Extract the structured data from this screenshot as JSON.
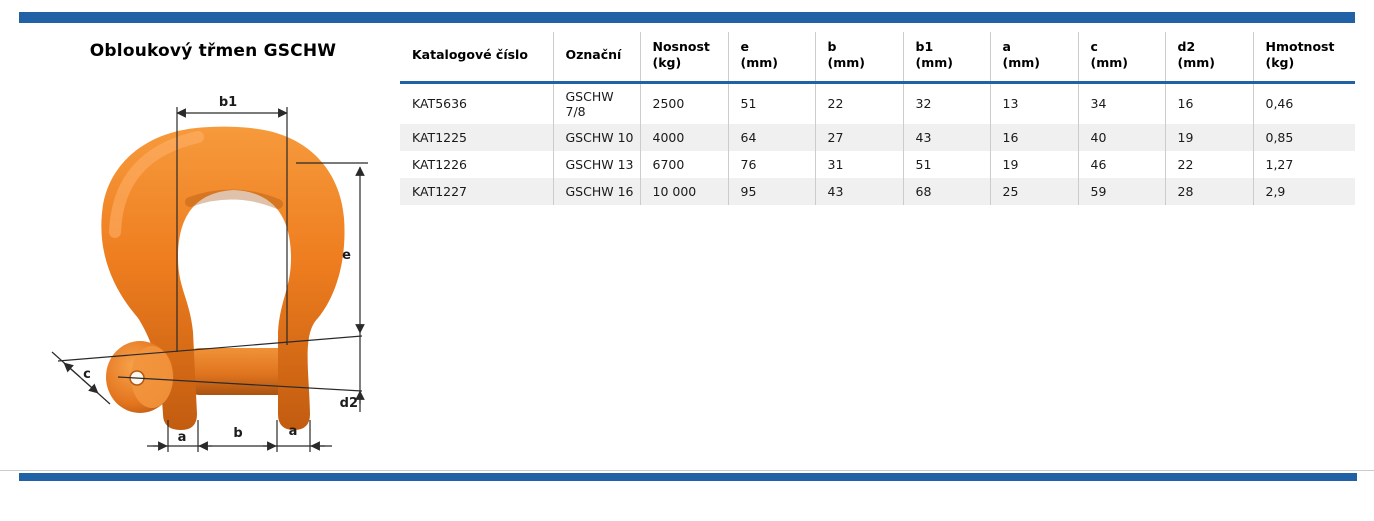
{
  "accent": "#2161a5",
  "title": "Obloukový třmen GSCHW",
  "diagram": {
    "description": "bow-shackle-technical-drawing",
    "shackle_color": "#ee7d1f",
    "labels": {
      "b1": "b1",
      "e": "e",
      "c": "c",
      "a_left": "a",
      "b": "b",
      "a_right": "a",
      "d2": "d2"
    }
  },
  "table": {
    "columns": [
      "Katalogové číslo",
      "Označní",
      "Nosnost\n(kg)",
      "e\n(mm)",
      "b\n(mm)",
      "b1\n(mm)",
      "a\n(mm)",
      "c\n(mm)",
      "d2\n(mm)",
      "Hmotnost\n(kg)"
    ],
    "rows": [
      [
        "KAT5636",
        "GSCHW 7/8",
        "2500",
        "51",
        "22",
        "32",
        "13",
        "34",
        "16",
        "0,46"
      ],
      [
        "KAT1225",
        "GSCHW 10",
        "4000",
        "64",
        "27",
        "43",
        "16",
        "40",
        "19",
        "0,85"
      ],
      [
        "KAT1226",
        "GSCHW 13",
        "6700",
        "76",
        "31",
        "51",
        "19",
        "46",
        "22",
        "1,27"
      ],
      [
        "KAT1227",
        "GSCHW 16",
        "10 000",
        "95",
        "43",
        "68",
        "25",
        "59",
        "28",
        "2,9"
      ]
    ]
  }
}
